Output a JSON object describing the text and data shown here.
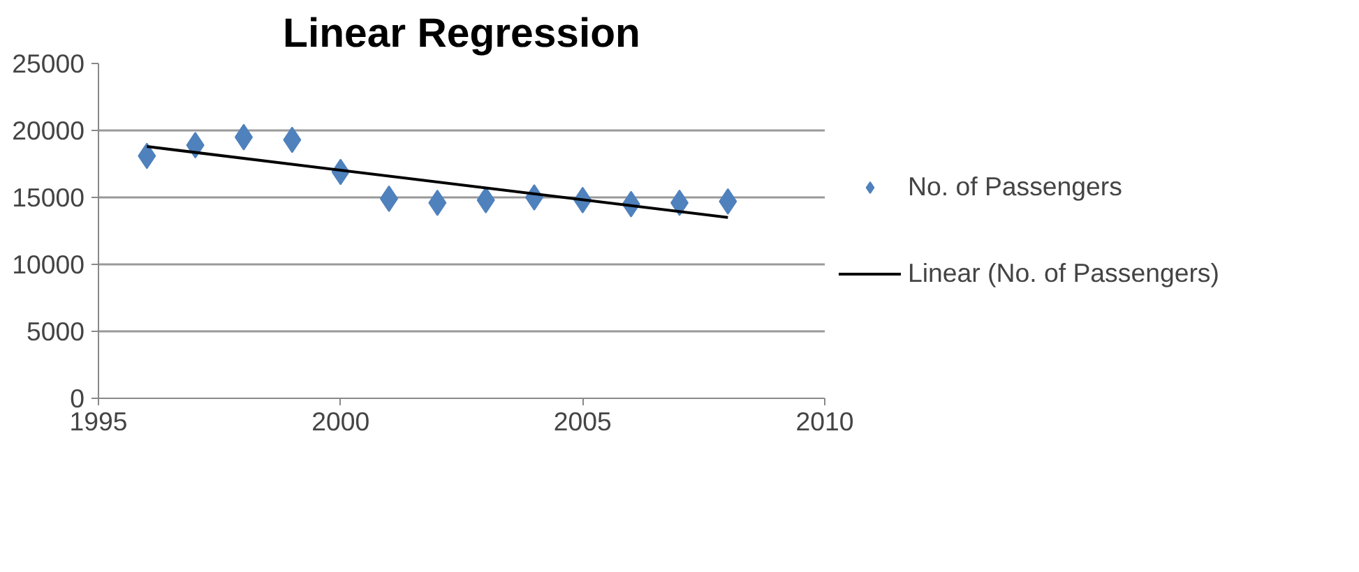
{
  "chart_data": {
    "type": "scatter",
    "title": "Linear Regression",
    "x": [
      1996,
      1997,
      1998,
      1999,
      2000,
      2001,
      2002,
      2003,
      2004,
      2005,
      2006,
      2007,
      2008
    ],
    "series": [
      {
        "name": "No. of Passengers",
        "color": "#4f81bd",
        "marker": "diamond",
        "values": [
          18100,
          18900,
          19500,
          19300,
          16900,
          14900,
          14600,
          14800,
          15000,
          14800,
          14500,
          14600,
          14700
        ]
      },
      {
        "name": "Linear (No. of Passengers)",
        "type": "line",
        "color": "#000000",
        "x": [
          1996,
          2008
        ],
        "values": [
          18800,
          13500
        ]
      }
    ],
    "xlim": [
      1995,
      2010
    ],
    "xticks": [
      1995,
      2000,
      2005,
      2010
    ],
    "ylim": [
      0,
      25000
    ],
    "yticks": [
      0,
      5000,
      10000,
      15000,
      20000,
      25000
    ],
    "grid": "y",
    "legend": "right"
  }
}
